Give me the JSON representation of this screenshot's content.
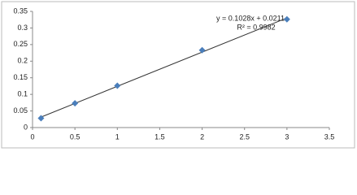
{
  "chart_data": {
    "type": "scatter",
    "x": [
      0.1,
      0.5,
      1,
      2,
      3
    ],
    "values": [
      0.028,
      0.073,
      0.126,
      0.233,
      0.326
    ],
    "color": "#4a7ebb",
    "trendline": true,
    "trendline_color": "#333333",
    "annotations": [
      "y = 0.1028x + 0.0211",
      "R² = 0.9982"
    ],
    "xlim": [
      0,
      3.5
    ],
    "xticks": [
      0,
      0.5,
      1,
      1.5,
      2,
      2.5,
      3,
      3.5
    ],
    "ylim": [
      0,
      0.35
    ],
    "yticks": [
      0,
      0.05,
      0.1,
      0.15,
      0.2,
      0.25,
      0.3,
      0.35
    ],
    "grid": false
  }
}
